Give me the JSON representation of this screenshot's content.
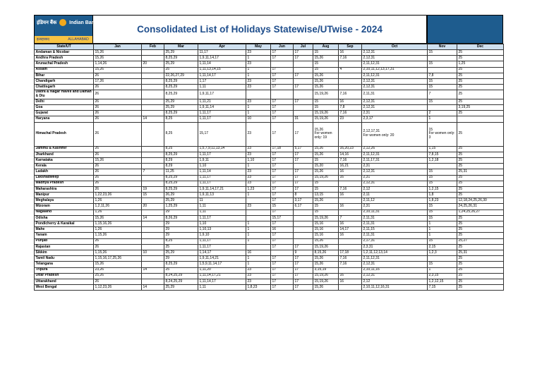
{
  "logo": {
    "text_top": "इंडियन बैंक",
    "brand": "Indian Bank",
    "text_bottom_left": "इलाहाबाद",
    "text_bottom_right": "ALLAHABAD"
  },
  "title": "Consolidated List of Holidays Statewise/UTwise - 2024",
  "columns": [
    "State/UT",
    "Jan",
    "Feb",
    "Mar",
    "Apr",
    "May",
    "Jun",
    "Jul",
    "Aug",
    "Sep",
    "Oct",
    "Nov",
    "Dec"
  ],
  "rows": [
    [
      "Andaman & Nicobar",
      "15,26",
      "",
      "25,29",
      "11,17",
      "23",
      "17",
      "17",
      "15",
      "16",
      "2,12,31",
      "15",
      "25"
    ],
    [
      "Andhra Pradesh",
      "15,26",
      "",
      "8,25,29",
      "1,9,11,14,17",
      "1",
      "17",
      "17",
      "15,26",
      "7,16",
      "2,12,31",
      "",
      "25"
    ],
    [
      "Arunachal Pradesh",
      "1,14,26",
      "20",
      "25,29",
      "1,11,14",
      "23",
      "",
      "",
      "15",
      "",
      "2,11,12,31",
      "15",
      "1,25"
    ],
    [
      "Assam",
      "15,26",
      "",
      "25",
      "1,11,13,14,15",
      "1",
      "17",
      "",
      "15",
      "4",
      "2,10,11,12,13,17,31",
      "",
      "25"
    ],
    [
      "Bihar",
      "26",
      "",
      "22,26,27,29",
      "1,11,14,17",
      "1",
      "17",
      "17",
      "15,26",
      "",
      "2,11,12,31",
      "7,8",
      "25"
    ],
    [
      "Chandigarh",
      "17,26",
      "",
      "8,25,29",
      "1,17",
      "23",
      "17",
      "",
      "15,26",
      "",
      "2,12,31",
      "15",
      "25"
    ],
    [
      "Chattisgarh",
      "26",
      "",
      "8,25,29",
      "1,11",
      "23",
      "17",
      "17",
      "15,26",
      "",
      "2,12,31",
      "15",
      "25"
    ],
    [
      "Dadra & Nagar Haveli and Daman & Diu",
      "26",
      "",
      "8,25,29",
      "1,9,11,17",
      "",
      "",
      "",
      "15,19,26",
      "7,16",
      "2,11,31",
      "7",
      "25"
    ],
    [
      "Delhi",
      "26",
      "",
      "25,29",
      "1,11,21",
      "23",
      "17",
      "17",
      "15",
      "16",
      "2,12,31",
      "15",
      "25"
    ],
    [
      "Goa",
      "26",
      "",
      "25,29",
      "1,9,11,14",
      "1",
      "17",
      "",
      "15",
      "7,8",
      "2,12,31",
      "",
      "3,19,25"
    ],
    [
      "Gujarat",
      "26",
      "",
      "8,25,29",
      "1,11,17",
      "1",
      "17",
      "",
      "15,19,26",
      "7,16",
      "2,31",
      "2",
      "25"
    ],
    [
      "Haryana",
      "26",
      "14",
      "8,25",
      "1,11,17",
      "10",
      "17",
      "31",
      "15,19,26",
      "23",
      "2,3,17",
      "1",
      ""
    ],
    [
      "Himachal Pradesh",
      "26",
      "",
      "8,25",
      "15,17",
      "23",
      "17",
      "17",
      "15,26 For women only: 19",
      "",
      "2,12,17,31 For women only: 20",
      "15 For women only: 3",
      "25"
    ],
    [
      "Jammu & Kashmir",
      "26",
      "",
      "8,25",
      "1,5,7,9,11,13,14",
      "23",
      "17,18",
      "5,17",
      "15,26",
      "16,20,23",
      "2,12,26",
      "1,15",
      "25"
    ],
    [
      "Jharkhand",
      "26",
      "",
      "8,25,29",
      "1,11,17",
      "23",
      "17",
      "17",
      "15,26",
      "14,16",
      "2,11,12,31",
      "7,8,15",
      "25"
    ],
    [
      "Karnataka",
      "15,26",
      "",
      "8,29",
      "1,9,11",
      "1,10",
      "17",
      "17",
      "15",
      "7,16",
      "2,11,17,31",
      "1,2,18",
      "25"
    ],
    [
      "Kerala",
      "26",
      "",
      "8,29",
      "1,10",
      "1",
      "17",
      "",
      "15,20",
      "16,21",
      "2,31",
      "",
      "25"
    ],
    [
      "Ladakh",
      "26",
      "7",
      "11,25",
      "1,11,14",
      "23",
      "17",
      "17",
      "15,26",
      "16",
      "2,12,31",
      "15",
      "25,31"
    ],
    [
      "Lakshadweep",
      "26",
      "",
      "8,25,29",
      "1,11,17",
      "23",
      "17",
      "17",
      "15,19,26",
      "16",
      "2,31",
      "15",
      "25"
    ],
    [
      "Madhya Pradesh",
      "26",
      "",
      "8,25,29",
      "1,11,17",
      "23",
      "17",
      "17",
      "15",
      "",
      "2,12,31",
      "15",
      "25"
    ],
    [
      "Maharashtra",
      "26",
      "19",
      "8,25,29",
      "1,9,11,14,17,21",
      "1,23",
      "17",
      "17",
      "15",
      "7,16",
      "2,12",
      "1,2,15",
      "25"
    ],
    [
      "Manipur",
      "1,22,23,26",
      "15",
      "26,29",
      "1,9,11,13",
      "1",
      "17",
      "8",
      "13,15",
      "16",
      "2,11",
      "1,8",
      "25"
    ],
    [
      "Meghalaya",
      "1,26",
      "",
      "25,29",
      "11",
      "",
      "17",
      "3,17",
      "15,26",
      "",
      "2,11,12",
      "1,8,23",
      "12,18,24,25,26,30"
    ],
    [
      "Mizoram",
      "1,2,11,26",
      "20",
      "1,25,29",
      "1,11",
      "23",
      "15",
      "6,17",
      "15",
      "16",
      "2,31",
      "15",
      "24,25,26,31"
    ],
    [
      "Nagaland",
      "1,26",
      "",
      "29",
      "1,11",
      "",
      "17",
      "",
      "15",
      "",
      "2,10,11,31",
      "15",
      "1,24,25,26,27"
    ],
    [
      "Odisha",
      "15,26",
      "14",
      "8,26,29",
      "1,11,17",
      "",
      "15,17",
      "",
      "15,19,26",
      "7",
      "2,11,31",
      "15",
      "25"
    ],
    [
      "Pondicherry & Karaikal",
      "1,15,16,26",
      "",
      "29",
      "1,10",
      "1",
      "17",
      "",
      "15,16",
      "16",
      "2,11,31",
      "1",
      "25"
    ],
    [
      "Mahe",
      "1,26",
      "",
      "29",
      "1,10,13",
      "1",
      "16",
      "",
      "15,16",
      "14,17",
      "2,11,15",
      "1",
      "25"
    ],
    [
      "Yanam",
      "1,15,26",
      "",
      "29",
      "1,9,10",
      "1",
      "17",
      "",
      "15,16",
      "16",
      "2,11,31",
      "1",
      "25"
    ],
    [
      "Punjab",
      "26",
      "",
      "8,25",
      "1,11,17",
      "1",
      "17",
      "",
      "15,26",
      "",
      "2,17,31",
      "15",
      "25,27"
    ],
    [
      "Rajastan",
      "26",
      "",
      "25",
      "1,11,17",
      "",
      "17",
      "17",
      "15,19,26",
      "",
      "2,3,31",
      "2,15",
      "25"
    ],
    [
      "Sikkim",
      "1,15,26",
      "10",
      "25,29",
      "1,14,17",
      "16",
      "",
      "9",
      "8,15,26",
      "17,18",
      "1,2,11,12,13,14",
      "1,2,3",
      "25,31"
    ],
    [
      "Tamil Nadu",
      "1,15,16,17,25,26",
      "",
      "29",
      "1,9,11,14,21",
      "1",
      "17",
      "17",
      "15,26",
      "7,16",
      "2,11,12,31",
      "",
      "25"
    ],
    [
      "Telangana",
      "15,26",
      "",
      "8,25,29",
      "1,5,9,11,14,17",
      "1",
      "17",
      "17",
      "15,26",
      "7,16",
      "2,12,31",
      "15",
      "25"
    ],
    [
      "Tripura",
      "23,26",
      "14",
      "25",
      "1,11,20",
      "23",
      "17",
      "17",
      "3,15,19",
      "",
      "2,10,11,16",
      "1",
      "25"
    ],
    [
      "Uttar Pradesh",
      "25,26",
      "",
      "8,24,25,29",
      "1,11,14,17,21",
      "23",
      "17",
      "17",
      "15,19,26",
      "16",
      "2,12,31",
      "2,3,15",
      "25"
    ],
    [
      "Uttarakhand",
      "26",
      "",
      "8,24,25,29",
      "1,11,14,17",
      "23",
      "17",
      "17",
      "15,19,26",
      "16",
      "2,12",
      "1,2,12,15",
      "25"
    ],
    [
      "West Bengal",
      "1,12,23,26",
      "14",
      "25,29",
      "1,11",
      "1,8,23",
      "17",
      "17",
      "15,26",
      "",
      "2,10,11,12,16,31",
      "7,15",
      "25"
    ]
  ]
}
